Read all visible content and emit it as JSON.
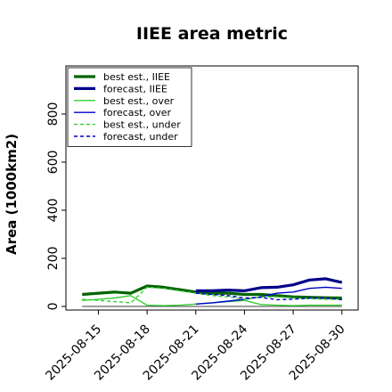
{
  "chart_data": {
    "type": "line",
    "title": "IIEE area metric",
    "ylabel": "Area (1000km2)",
    "xlabel": "",
    "x": [
      "2025-08-14",
      "2025-08-15",
      "2025-08-16",
      "2025-08-17",
      "2025-08-18",
      "2025-08-19",
      "2025-08-20",
      "2025-08-21",
      "2025-08-22",
      "2025-08-23",
      "2025-08-24",
      "2025-08-25",
      "2025-08-26",
      "2025-08-27",
      "2025-08-28",
      "2025-08-29",
      "2025-08-30"
    ],
    "x_ticks": [
      "2025-08-15",
      "2025-08-18",
      "2025-08-21",
      "2025-08-24",
      "2025-08-27",
      "2025-08-30"
    ],
    "highlight_tick": "2025-08-21",
    "highlight_color": "#228b22",
    "xlim": [
      "2025-08-13",
      "2025-08-31"
    ],
    "y_ticks": [
      0,
      200,
      400,
      600,
      800
    ],
    "ylim": [
      -15,
      1000
    ],
    "grid": false,
    "legend_position": "top-left",
    "series": [
      {
        "name": "best est., IIEE",
        "color": "#006400",
        "style": "solid",
        "weight": "thick",
        "x": [
          "2025-08-14",
          "2025-08-15",
          "2025-08-16",
          "2025-08-17",
          "2025-08-18",
          "2025-08-19",
          "2025-08-20",
          "2025-08-21",
          "2025-08-22",
          "2025-08-23",
          "2025-08-24",
          "2025-08-25",
          "2025-08-26",
          "2025-08-27",
          "2025-08-28",
          "2025-08-29",
          "2025-08-30"
        ],
        "values": [
          50,
          55,
          60,
          55,
          85,
          80,
          70,
          60,
          55,
          55,
          50,
          50,
          45,
          40,
          38,
          36,
          35
        ]
      },
      {
        "name": "forecast, IIEE",
        "color": "#00008b",
        "style": "solid",
        "weight": "thick",
        "x": [
          "2025-08-21",
          "2025-08-22",
          "2025-08-23",
          "2025-08-24",
          "2025-08-25",
          "2025-08-26",
          "2025-08-27",
          "2025-08-28",
          "2025-08-29",
          "2025-08-30"
        ],
        "values": [
          65,
          65,
          68,
          65,
          78,
          80,
          90,
          110,
          115,
          100
        ]
      },
      {
        "name": "best est., over",
        "color": "#32cd32",
        "style": "solid",
        "weight": "thin",
        "x": [
          "2025-08-14",
          "2025-08-15",
          "2025-08-16",
          "2025-08-17",
          "2025-08-18",
          "2025-08-19",
          "2025-08-20",
          "2025-08-21",
          "2025-08-22",
          "2025-08-23",
          "2025-08-24",
          "2025-08-25",
          "2025-08-26",
          "2025-08-27",
          "2025-08-28",
          "2025-08-29",
          "2025-08-30"
        ],
        "values": [
          25,
          30,
          35,
          45,
          5,
          3,
          5,
          10,
          15,
          20,
          25,
          8,
          5,
          3,
          5,
          5,
          5
        ]
      },
      {
        "name": "forecast, over",
        "color": "#0000cd",
        "style": "solid",
        "weight": "thin",
        "x": [
          "2025-08-21",
          "2025-08-22",
          "2025-08-23",
          "2025-08-24",
          "2025-08-25",
          "2025-08-26",
          "2025-08-27",
          "2025-08-28",
          "2025-08-29",
          "2025-08-30"
        ],
        "values": [
          10,
          15,
          22,
          30,
          40,
          55,
          60,
          75,
          80,
          75
        ]
      },
      {
        "name": "best est., under",
        "color": "#32cd32",
        "style": "dashed",
        "weight": "thin",
        "x": [
          "2025-08-14",
          "2025-08-15",
          "2025-08-16",
          "2025-08-17",
          "2025-08-18",
          "2025-08-19",
          "2025-08-20",
          "2025-08-21",
          "2025-08-22",
          "2025-08-23",
          "2025-08-24",
          "2025-08-25",
          "2025-08-26",
          "2025-08-27",
          "2025-08-28",
          "2025-08-29",
          "2025-08-30"
        ],
        "values": [
          30,
          25,
          20,
          15,
          80,
          75,
          65,
          55,
          45,
          40,
          30,
          40,
          40,
          35,
          32,
          30,
          30
        ]
      },
      {
        "name": "forecast, under",
        "color": "#0000cd",
        "style": "dashed",
        "weight": "thin",
        "x": [
          "2025-08-21",
          "2025-08-22",
          "2025-08-23",
          "2025-08-24",
          "2025-08-25",
          "2025-08-26",
          "2025-08-27",
          "2025-08-28",
          "2025-08-29",
          "2025-08-30"
        ],
        "values": [
          55,
          50,
          45,
          35,
          38,
          28,
          30,
          35,
          35,
          28
        ]
      }
    ],
    "reference_line": {
      "color": "#555555",
      "y": 0,
      "x": [
        "2025-08-14",
        "2025-08-30"
      ]
    }
  }
}
